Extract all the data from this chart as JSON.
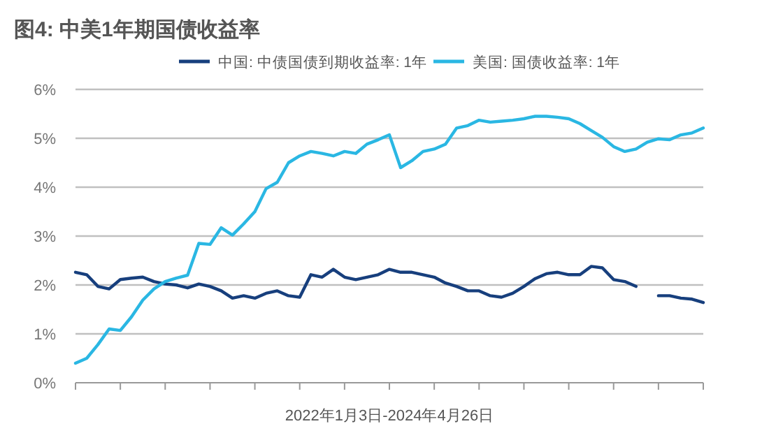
{
  "chart_data": {
    "type": "line",
    "title": "图4: 中美1年期国债收益率",
    "xlabel": "2022年1月3日-2024年4月26日",
    "categories": [
      null,
      null,
      null,
      null,
      null,
      null,
      null,
      null,
      null,
      null,
      null,
      null,
      null,
      null,
      null,
      null,
      null,
      null,
      null,
      null,
      null,
      null,
      null,
      null,
      null,
      null,
      null,
      null,
      null,
      null,
      null,
      null,
      null,
      null,
      null,
      null,
      null,
      null,
      null,
      null,
      null,
      null,
      null,
      null,
      null,
      null,
      null,
      null,
      null,
      null,
      null,
      null,
      null,
      null,
      null,
      null,
      null
    ],
    "series": [
      {
        "name": "中国: 中债国债到期收益率: 1年",
        "color": "#173f7d",
        "values": [
          2.26,
          2.21,
          1.97,
          1.92,
          2.11,
          2.14,
          2.16,
          2.07,
          2.02,
          2.0,
          1.94,
          2.02,
          1.97,
          1.88,
          1.73,
          1.78,
          1.73,
          1.83,
          1.88,
          1.78,
          1.75,
          2.21,
          2.16,
          2.32,
          2.16,
          2.11,
          2.16,
          2.21,
          2.32,
          2.26,
          2.26,
          2.21,
          2.16,
          2.04,
          1.97,
          1.88,
          1.88,
          1.78,
          1.75,
          1.83,
          1.97,
          2.13,
          2.23,
          2.26,
          2.21,
          2.21,
          2.38,
          2.35,
          2.11,
          2.07,
          1.97,
          null,
          1.78,
          1.78,
          1.73,
          1.71,
          1.64
        ]
      },
      {
        "name": "美国: 国债收益率: 1年",
        "color": "#2ab7e3",
        "values": [
          0.4,
          0.5,
          0.78,
          1.1,
          1.07,
          1.35,
          1.69,
          1.92,
          2.07,
          2.14,
          2.2,
          2.85,
          2.83,
          3.17,
          3.02,
          3.25,
          3.5,
          3.97,
          4.1,
          4.5,
          4.64,
          4.73,
          4.69,
          4.64,
          4.73,
          4.69,
          4.88,
          4.97,
          5.07,
          4.4,
          4.54,
          4.73,
          4.78,
          4.88,
          5.21,
          5.26,
          5.37,
          5.33,
          5.35,
          5.37,
          5.4,
          5.45,
          5.45,
          5.43,
          5.4,
          5.3,
          5.16,
          5.02,
          4.83,
          4.73,
          4.78,
          4.92,
          4.99,
          4.97,
          5.07,
          5.11,
          5.21
        ]
      }
    ],
    "ylim": [
      0,
      6
    ],
    "yticks": [
      {
        "value": 0,
        "label": "0%"
      },
      {
        "value": 1,
        "label": "1%"
      },
      {
        "value": 2,
        "label": "2%"
      },
      {
        "value": 3,
        "label": "3%"
      },
      {
        "value": 4,
        "label": "4%"
      },
      {
        "value": 5,
        "label": "5%"
      },
      {
        "value": 6,
        "label": "6%"
      }
    ],
    "grid": "y",
    "legend": "top",
    "line_style": "solid",
    "marker": "none"
  }
}
